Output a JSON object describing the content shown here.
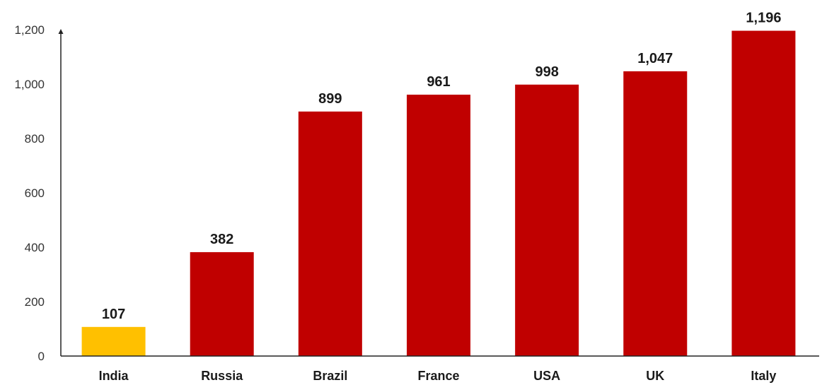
{
  "chart_data": {
    "type": "bar",
    "title": "",
    "xlabel": "",
    "ylabel": "",
    "categories": [
      "India",
      "Russia",
      "Brazil",
      "France",
      "USA",
      "UK",
      "Italy"
    ],
    "values": [
      107,
      382,
      899,
      961,
      998,
      1047,
      1196
    ],
    "value_labels": [
      "107",
      "382",
      "899",
      "961",
      "998",
      "1,047",
      "1,196"
    ],
    "ylim": [
      0,
      1200
    ],
    "yticks": [
      0,
      200,
      400,
      600,
      800,
      1000,
      1200
    ],
    "ytick_labels": [
      "0",
      "200",
      "400",
      "600",
      "800",
      "1,000",
      "1,200"
    ],
    "grid": false,
    "legend": "none",
    "highlight_category": "India",
    "colors": {
      "bar": "#c00000",
      "highlight": "#ffc000",
      "axis": "#222222"
    }
  }
}
